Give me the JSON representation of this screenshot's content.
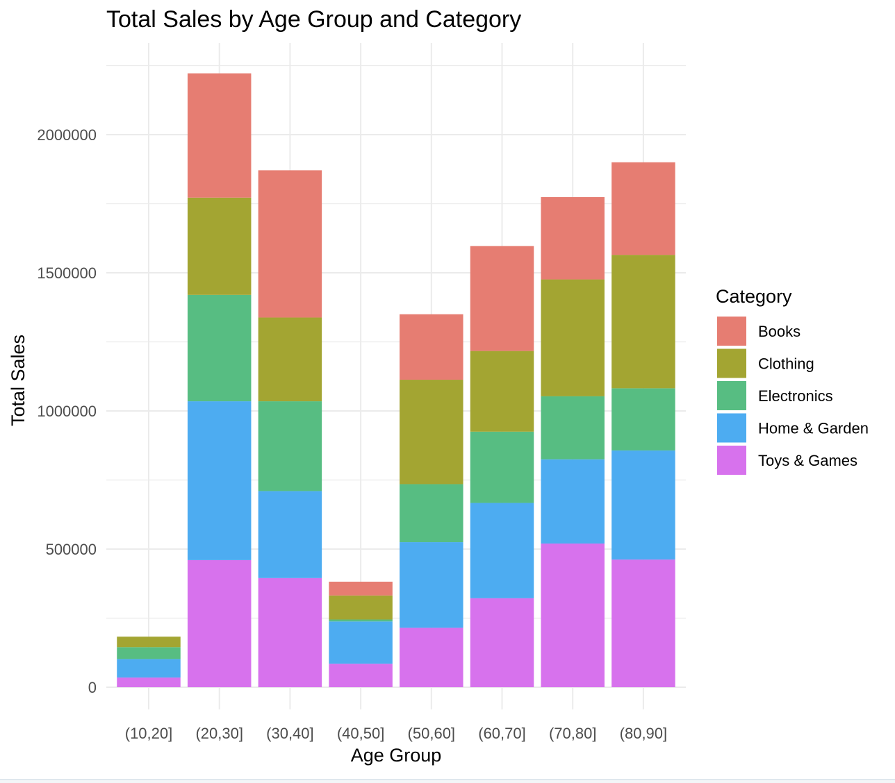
{
  "chart_data": {
    "type": "bar",
    "stacked": true,
    "title": "Total Sales by Age Group and Category",
    "xlabel": "Age Group",
    "ylabel": "Total Sales",
    "ylim": [
      0,
      2300000
    ],
    "yticks": [
      0,
      500000,
      1000000,
      1500000,
      2000000
    ],
    "ytick_labels": [
      "0",
      "500000",
      "1000000",
      "1500000",
      "2000000"
    ],
    "grid": true,
    "legend": {
      "title": "Category",
      "position": "right"
    },
    "categories": [
      "(10,20]",
      "(20,30]",
      "(30,40]",
      "(40,50]",
      "(50,60]",
      "(60,70]",
      "(70,80]",
      "(80,90]"
    ],
    "series": [
      {
        "name": "Toys & Games",
        "color": "#d772ed",
        "values": [
          35000,
          460000,
          395000,
          85000,
          215000,
          322000,
          520000,
          462000
        ]
      },
      {
        "name": "Home & Garden",
        "color": "#4dacf1",
        "values": [
          67000,
          575000,
          315000,
          153000,
          310000,
          345000,
          305000,
          395000
        ]
      },
      {
        "name": "Electronics",
        "color": "#57bd82",
        "values": [
          43000,
          385000,
          325000,
          7000,
          210000,
          258000,
          228000,
          225000
        ]
      },
      {
        "name": "Clothing",
        "color": "#a3a532",
        "values": [
          38000,
          352000,
          303000,
          87000,
          378000,
          292000,
          423000,
          483000
        ]
      },
      {
        "name": "Books",
        "color": "#e67d72",
        "values": [
          0,
          450000,
          533000,
          50000,
          237000,
          380000,
          298000,
          335000
        ]
      }
    ],
    "legend_order": [
      "Books",
      "Clothing",
      "Electronics",
      "Home & Garden",
      "Toys & Games"
    ]
  }
}
